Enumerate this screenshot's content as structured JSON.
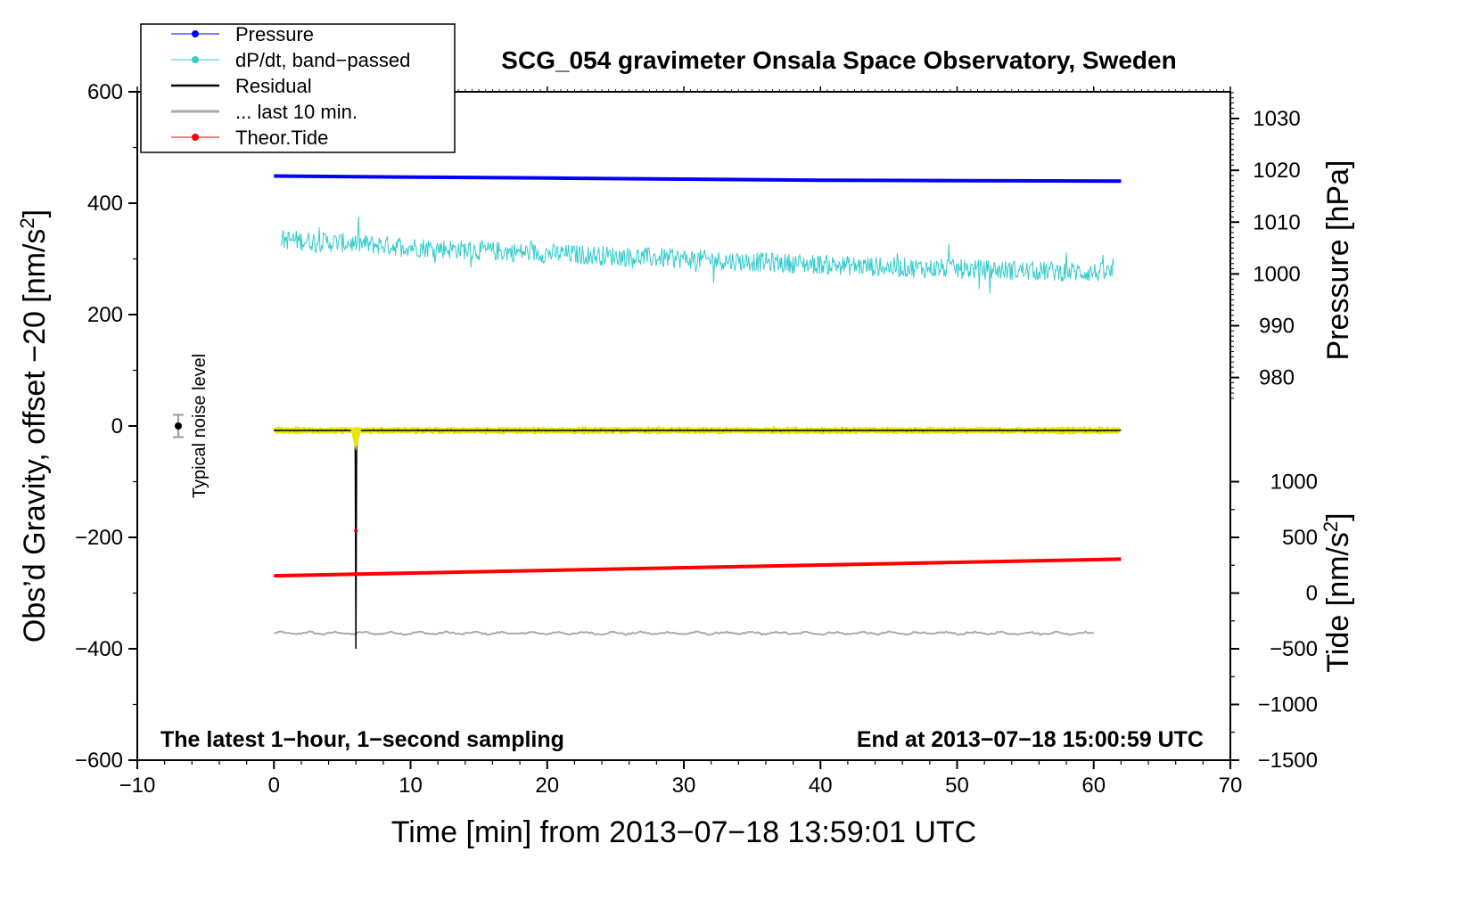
{
  "chart_data": {
    "type": "line",
    "title": "SCG_054 gravimeter Onsala Space Observatory, Sweden",
    "xlabel": "Time [min] from 2013−07−18 13:59:01 UTC",
    "ylabel": "Obs’d Gravity, offset −20 [nm/s",
    "ylabel_sup": "2",
    "ylabel_end": "]",
    "xlim": [
      -10,
      70
    ],
    "ylim": [
      -600,
      600
    ],
    "x_ticks": [
      -10,
      0,
      10,
      20,
      30,
      40,
      50,
      60,
      70
    ],
    "x_tick_labels": [
      "−10",
      "0",
      "10",
      "20",
      "30",
      "40",
      "50",
      "60",
      "70"
    ],
    "y_ticks": [
      600,
      400,
      200,
      0,
      -200,
      -400,
      -600
    ],
    "y_tick_labels": [
      "600",
      "400",
      "200",
      "0",
      "−200",
      "−400",
      "−600"
    ],
    "right_axes": [
      {
        "label": "Pressure [hPa]",
        "ticks": [
          1030,
          1020,
          1010,
          1000,
          990,
          980
        ],
        "tick_labels": [
          "1030",
          "1020",
          "1010",
          "1000",
          "990",
          "980"
        ],
        "map_left_value_at_1030": 552,
        "left_units_per_hpa": 9.3
      },
      {
        "label": "Tide [nm/s",
        "label_sup": "2",
        "label_end": "]",
        "ticks": [
          1000,
          500,
          0,
          -500,
          -1000,
          -1500
        ],
        "tick_labels": [
          "1000",
          "500",
          "0",
          "−500",
          "−1000",
          "−1500"
        ],
        "map_left_value_at_0": -300,
        "left_units_per_tide": 0.2
      }
    ],
    "series": [
      {
        "name": "Pressure",
        "color": "#0000ff",
        "axis": "pressure",
        "x": [
          0,
          10,
          20,
          30,
          40,
          50,
          62
        ],
        "y": [
          1018.9,
          1018.7,
          1018.5,
          1018.3,
          1018.1,
          1018.0,
          1017.9
        ]
      },
      {
        "name": "dP/dt, band−passed",
        "color": "#33cccc",
        "axis": "left",
        "x_start": 0.5,
        "x_end": 61.5,
        "trend": [
          [
            0.5,
            335
          ],
          [
            15,
            315
          ],
          [
            30,
            300
          ],
          [
            45,
            285
          ],
          [
            61.5,
            275
          ]
        ],
        "amplitude": 18
      },
      {
        "name": "Residual",
        "color": "#000000",
        "axis": "left",
        "x": [
          0,
          5.8,
          5.95,
          6.0,
          6.05,
          6.2,
          62
        ],
        "y": [
          -8,
          -8,
          -30,
          -400,
          -40,
          -8,
          -8
        ]
      },
      {
        "name": "... last 10 min.",
        "color": "#aaaaaa",
        "axis": "left",
        "x_start": 0,
        "x_end": 60,
        "level": -372,
        "amplitude": 3
      },
      {
        "name": "Theor.Tide",
        "color": "#ff0000",
        "axis": "left",
        "x": [
          0,
          62
        ],
        "y": [
          -269,
          -239
        ]
      }
    ],
    "noise_marker": {
      "x": -7,
      "y": 0,
      "err": 20,
      "label": "Typical noise level"
    },
    "annotations": {
      "left": "The latest 1−hour, 1−second sampling",
      "right": "End at 2013−07−18 15:00:59 UTC"
    },
    "legend_placement": "top-left",
    "grid": false
  }
}
